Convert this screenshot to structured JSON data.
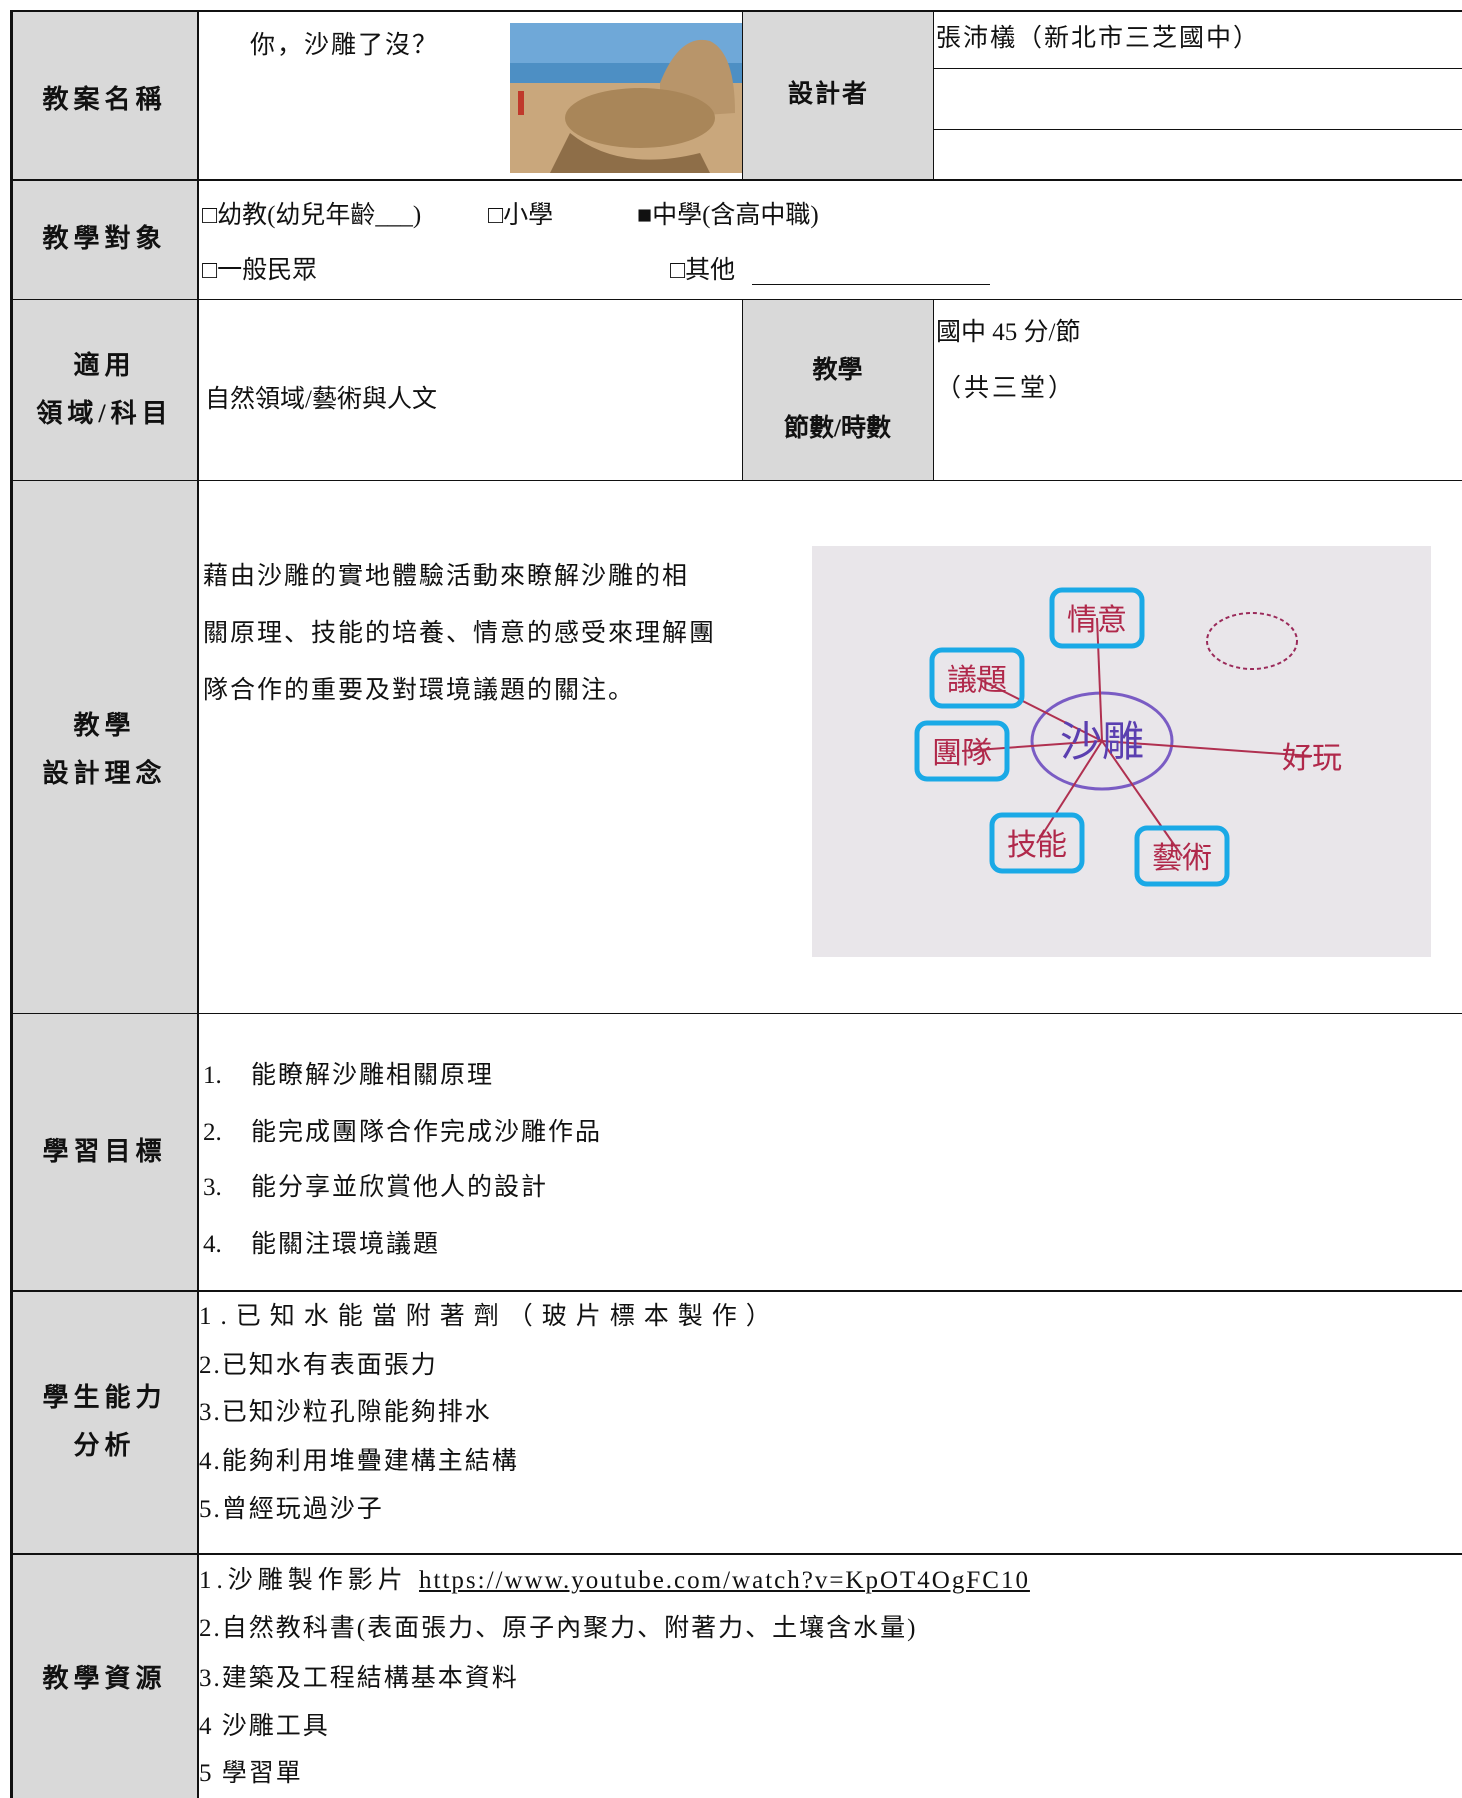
{
  "lesson_name": {
    "label": "教案名稱",
    "value": "你，沙雕了沒？"
  },
  "designer": {
    "label": "設計者",
    "value": "張沛檥（新北市三芝國中）"
  },
  "audience": {
    "label": "教學對象",
    "line1": [
      "□幼教(幼兒年齡___)",
      "□小學",
      "■中學(含高中職)"
    ],
    "line2": [
      "□一般民眾",
      "□其他"
    ]
  },
  "domain": {
    "label": [
      "適用",
      "領域/科目"
    ],
    "value": "自然領域/藝術與人文"
  },
  "sessions": {
    "label": [
      "教學",
      "節數/時數"
    ],
    "values": [
      "國中 45 分/節",
      "（共三堂）"
    ]
  },
  "rationale": {
    "label": [
      "教學",
      "設計理念"
    ],
    "lines": [
      "藉由沙雕的實地體驗活動來瞭解沙雕的相",
      "關原理、技能的培養、情意的感受來理解團",
      "隊合作的重要及對環境議題的關注。"
    ],
    "mindmap": {
      "center": "沙雕",
      "nodes": [
        "情意",
        "議題",
        "團隊",
        "技能",
        "藝術",
        "好玩"
      ]
    }
  },
  "objectives": {
    "label": "學習目標",
    "items": [
      {
        "num": "1.",
        "text": "能瞭解沙雕相關原理"
      },
      {
        "num": "2.",
        "text": "能完成團隊合作完成沙雕作品"
      },
      {
        "num": "3.",
        "text": "能分享並欣賞他人的設計"
      },
      {
        "num": "4.",
        "text": "能關注環境議題"
      }
    ]
  },
  "abilities": {
    "label": [
      "學生能力",
      "分析"
    ],
    "items": [
      "1.已知水能當附著劑（玻片標本製作）",
      "2.已知水有表面張力",
      "3.已知沙粒孔隙能夠排水",
      "4.能夠利用堆疊建構主結構",
      "5.曾經玩過沙子"
    ]
  },
  "resources": {
    "label": "教學資源",
    "items": [
      {
        "text": "1.沙雕製作影片 ",
        "link": "https://www.youtube.com/watch?v=KpOT4OgFC10"
      },
      {
        "text": "2.自然教科書(表面張力、原子內聚力、附著力、土壤含水量)"
      },
      {
        "text": "3.建築及工程結構基本資料"
      },
      {
        "text": "4 沙雕工具"
      },
      {
        "text": "5 學習單"
      }
    ]
  }
}
